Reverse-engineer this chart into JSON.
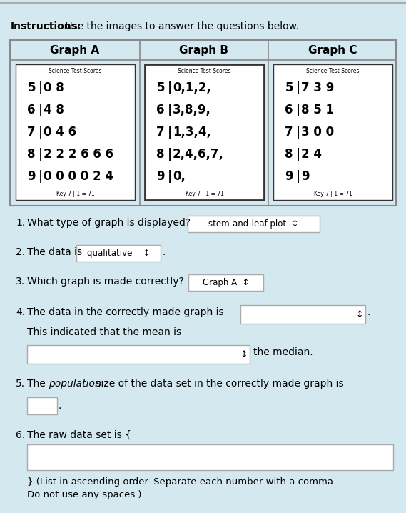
{
  "bg_color": "#d4e8f0",
  "instructions_bold": "Instructions:",
  "instructions_text": " Use the images to answer the questions below.",
  "graph_titles": [
    "Graph A",
    "Graph B",
    "Graph C"
  ],
  "graph_subtitle": "Science Test Scores",
  "graph_A_rows": [
    [
      "5",
      "0 8"
    ],
    [
      "6",
      "4 8"
    ],
    [
      "7",
      "0 4 6"
    ],
    [
      "8",
      "2 2 2 6 6 6"
    ],
    [
      "9",
      "0 0 0 0 2 4"
    ]
  ],
  "graph_B_rows": [
    [
      "5",
      "0,1,2,"
    ],
    [
      "6",
      "3,8,9,"
    ],
    [
      "7",
      "1,3,4,"
    ],
    [
      "8",
      "2,4,6,7,"
    ],
    [
      "9",
      "0,"
    ]
  ],
  "graph_C_rows": [
    [
      "5",
      "7 3 9"
    ],
    [
      "6",
      "8 5 1"
    ],
    [
      "7",
      "3 0 0"
    ],
    [
      "8",
      "2 4"
    ],
    [
      "9",
      "9"
    ]
  ],
  "graph_key": "Key 7 | 1 = 71",
  "q1_label": "1.",
  "q1_text": "What type of graph is displayed?",
  "q1_answer": "stem-and-leaf plot  ↕",
  "q2_label": "2.",
  "q2_pre": "The data is",
  "q2_answer": "qualitative    ↕",
  "q2_suffix": ".",
  "q3_label": "3.",
  "q3_text": "Which graph is made correctly?",
  "q3_answer": "Graph A  ↕",
  "q4_label": "4.",
  "q4_text": "The data in the correctly made graph is",
  "q4_answer": "  ↕",
  "q4b_indent": "This indicated that the mean is",
  "q4b_answer": "  ↕",
  "q4b_suffix": "the median.",
  "q5_label": "5.",
  "q5_pre": "The ",
  "q5_italic": "population",
  "q5_post": " size of the data set in the correctly made graph is",
  "q6_label": "6.",
  "q6_text": "The raw data set is {",
  "q6_suffix1": "} (List in ascending order. Separate each number with a comma.",
  "q6_suffix2": "Do not use any spaces.)"
}
